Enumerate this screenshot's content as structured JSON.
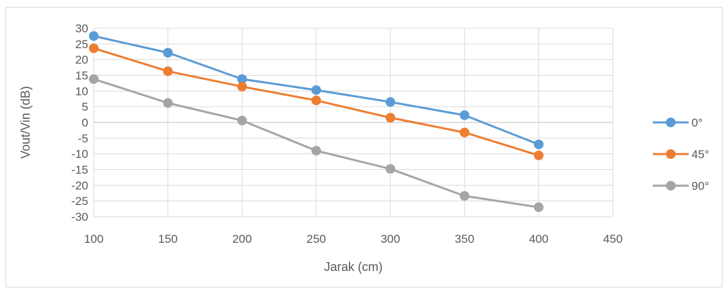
{
  "chart_data": {
    "type": "line",
    "title": "",
    "xlabel": "Jarak (cm)",
    "ylabel": "Vout/Vin (dB)",
    "xlim": [
      100,
      450
    ],
    "ylim": [
      -30,
      30
    ],
    "x_ticks": [
      100,
      150,
      200,
      250,
      300,
      350,
      400,
      450
    ],
    "y_ticks": [
      30,
      25,
      20,
      15,
      10,
      5,
      0,
      -5,
      -10,
      -15,
      -20,
      -25,
      -30
    ],
    "y_tick_labels": [
      "30",
      "25",
      "20",
      "15",
      "10",
      "5",
      "0",
      "-5",
      "-10",
      "-15",
      "-20",
      "-25",
      "-30"
    ],
    "grid": true,
    "legend_position": "right",
    "x": [
      100,
      150,
      200,
      250,
      300,
      350,
      400
    ],
    "series": [
      {
        "name": "0°",
        "color": "#5b9bd5",
        "values": [
          27.5,
          22.2,
          13.8,
          10.3,
          6.5,
          2.3,
          -7.0
        ]
      },
      {
        "name": "45°",
        "color": "#ed7d31",
        "values": [
          23.6,
          16.3,
          11.4,
          7.0,
          1.5,
          -3.2,
          -10.5
        ]
      },
      {
        "name": "90°",
        "color": "#a5a5a5",
        "values": [
          13.8,
          6.2,
          0.6,
          -9.0,
          -14.8,
          -23.4,
          -27.0
        ]
      }
    ]
  }
}
